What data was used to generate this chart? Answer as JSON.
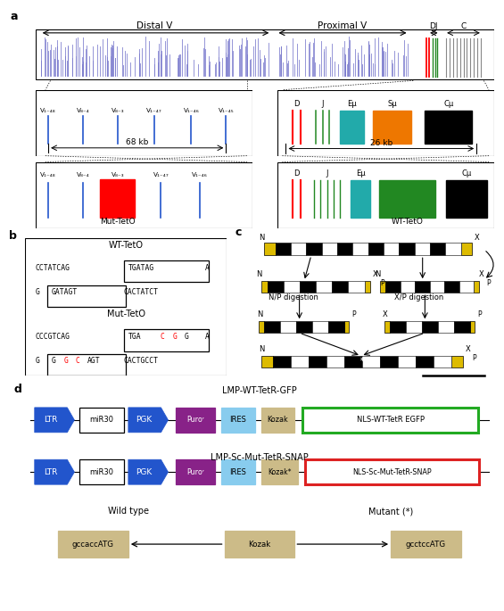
{
  "title_a": "a",
  "title_b": "b",
  "title_c": "c",
  "title_d": "d",
  "distal_v_label": "Distal V",
  "proximal_v_label": "Proximal V",
  "dj_label": "DJ",
  "c_label": "C",
  "kb68": "68 kb",
  "kb26": "26 kb",
  "v_labels_top": [
    "V₁₋₄₈",
    "V₈₋₄",
    "V₈₋₃",
    "V₁₋₄₇",
    "V₁₋₄₆",
    "V₁₋₄₅"
  ],
  "v_labels_bot": [
    "V₁₋₄₈",
    "V₈₋₄",
    "V₈₋₃",
    "V₁₋₄₇",
    "V₁₋₄₆"
  ],
  "mut_teto": "Mut-TetO",
  "wt_teto": "WT-TetO",
  "blue_color": "#2255cc",
  "red_color": "#dd2222",
  "green_color": "#228822",
  "orange_color": "#ee7700",
  "teal_color": "#22aaaa",
  "purple_color": "#882288",
  "lightblue_color": "#88ccee",
  "tan_color": "#ccbb88",
  "wt_teto_label": "WT-TetO",
  "mut_teto_label": "Mut-TetO",
  "lmp_wt_label": "LMP-WT-TetR-GFP",
  "lmp_mut_label": "LMP-Sc-Mut-TetR-SNAP",
  "wildtype_label": "Wild type",
  "mutant_label": "Mutant (*)",
  "kozak_wt": "gccaccATG",
  "kozak_label": "Kozak",
  "kozak_mut": "gcctccATG"
}
